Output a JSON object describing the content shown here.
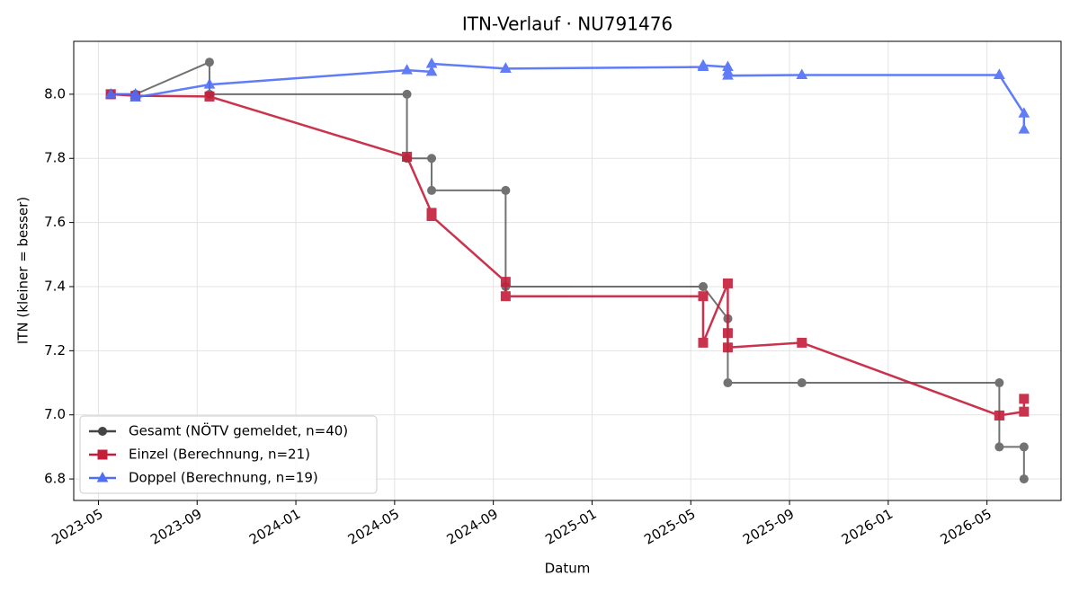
{
  "chart_data": {
    "type": "line",
    "title": "ITN-Verlauf · NU791476",
    "x_label": "Datum",
    "y_label": "ITN  (kleiner = besser)",
    "xlim": [
      "2023-04",
      "2026-08"
    ],
    "xticks": [
      "2023-05",
      "2023-09",
      "2024-01",
      "2024-05",
      "2024-09",
      "2025-01",
      "2025-05",
      "2025-09",
      "2026-01",
      "2026-05"
    ],
    "ylim": [
      6.733,
      8.165
    ],
    "yticks": [
      6.8,
      {
        "value": 7,
        "label": "7.0"
      },
      7.2,
      7.4,
      7.6,
      7.8,
      {
        "value": 8,
        "label": "8.0"
      }
    ],
    "grid": true,
    "legend": "lower left",
    "series": [
      {
        "name": "Gesamt (NÖTV gemeldet, n=40)",
        "color": "#444444",
        "marker": "circle",
        "x": [
          "2023-05",
          "2023-05",
          "2023-06",
          "2023-06",
          "2023-09",
          "2023-09",
          "2024-05",
          "2024-05",
          "2024-06",
          "2024-06",
          "2024-09",
          "2024-09",
          "2025-05",
          "2025-05",
          "2025-06",
          "2025-06",
          "2025-06",
          "2025-09",
          "2026-05",
          "2026-05",
          "2026-06",
          "2026-06"
        ],
        "values": [
          8.0,
          8.0,
          8.0,
          8.0,
          8.1,
          8.0,
          8.0,
          7.8,
          7.8,
          7.7,
          7.7,
          7.4,
          7.4,
          7.4,
          7.3,
          7.3,
          7.1,
          7.1,
          7.1,
          6.9,
          6.9,
          6.8
        ]
      },
      {
        "name": "Einzel (Berechnung, n=21)",
        "color": "#c41e3a",
        "marker": "square",
        "x": [
          "2023-05",
          "2023-05",
          "2023-06",
          "2023-09",
          "2023-09",
          "2024-05",
          "2024-05",
          "2024-06",
          "2024-06",
          "2024-09",
          "2024-09",
          "2025-05",
          "2025-05",
          "2025-06",
          "2025-06",
          "2025-06",
          "2025-09",
          "2026-05",
          "2026-05",
          "2026-06",
          "2026-06"
        ],
        "values": [
          8.0,
          8.0,
          7.995,
          7.993,
          7.993,
          7.805,
          7.805,
          7.63,
          7.62,
          7.415,
          7.37,
          7.37,
          7.225,
          7.41,
          7.255,
          7.21,
          7.225,
          6.998,
          6.998,
          7.01,
          7.05
        ]
      },
      {
        "name": "Doppel (Berechnung, n=19)",
        "color": "#4f6ef7",
        "marker": "triangle",
        "x": [
          "2023-05",
          "2023-06",
          "2023-06",
          "2023-09",
          "2024-05",
          "2024-06",
          "2024-06",
          "2024-09",
          "2024-09",
          "2025-05",
          "2025-05",
          "2025-06",
          "2025-06",
          "2025-06",
          "2025-09",
          "2026-05",
          "2026-05",
          "2026-06",
          "2026-06"
        ],
        "values": [
          8.0,
          8.0,
          7.99,
          8.03,
          8.075,
          8.07,
          8.095,
          8.08,
          8.08,
          8.085,
          8.09,
          8.085,
          8.07,
          8.058,
          8.06,
          8.06,
          8.06,
          7.94,
          7.89
        ]
      }
    ]
  }
}
